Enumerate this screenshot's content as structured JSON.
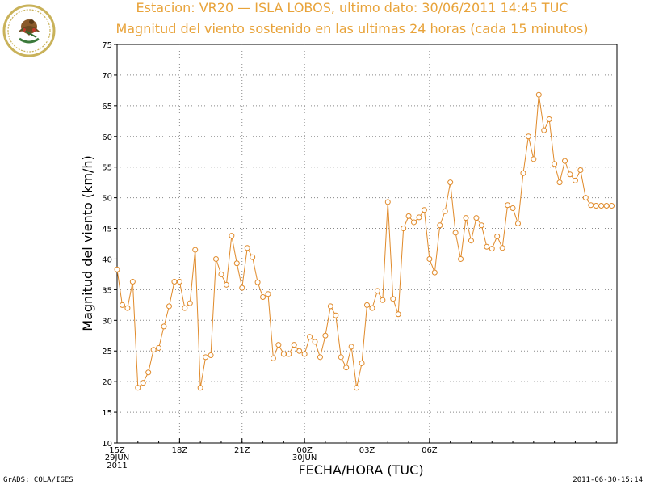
{
  "header": {
    "title": "Estacion: VR20 — ISLA LOBOS, ultimo dato: 30/06/2011 14:45 TUC",
    "subtitle": "Magnitud del viento sostenido en las ultimas 24 horas (cada 15 minutos)"
  },
  "footer": {
    "left": "GrADS: COLA/IGES",
    "right": "2011-06-30-15:14"
  },
  "logo": {
    "name": "seal-logo",
    "lettering": "Secretaria de Marina · Armada de Mexico"
  },
  "colors": {
    "series": "#e08a2a",
    "title": "#e8a33a",
    "grid": "#888888"
  },
  "chart_data": {
    "type": "line",
    "title": "Magnitud del viento sostenido en las ultimas 24 horas (cada 15 minutos)",
    "xlabel": "FECHA/HORA (TUC)",
    "ylabel": "Magnitud del viento (km/h)",
    "ylim": [
      10,
      75
    ],
    "yticks": [
      10,
      15,
      20,
      25,
      30,
      35,
      40,
      45,
      50,
      55,
      60,
      65,
      70,
      75
    ],
    "xlim": [
      "2011-06-29 15:00",
      "2011-06-30 15:00"
    ],
    "xticks": [
      {
        "t": "2011-06-29 15:00",
        "label": "15Z",
        "label2": "29JUN",
        "label3": "2011"
      },
      {
        "t": "2011-06-29 18:00",
        "label": "18Z"
      },
      {
        "t": "2011-06-29 21:00",
        "label": "21Z"
      },
      {
        "t": "2011-06-30 00:00",
        "label": "00Z",
        "label2": "30JUN"
      },
      {
        "t": "2011-06-30 03:00",
        "label": "03Z"
      },
      {
        "t": "2011-06-30 06:00",
        "label": "06Z"
      }
    ],
    "grid": true,
    "start": "2011-06-29 15:00",
    "interval": "15 minutes",
    "values": [
      38.3,
      32.5,
      32.0,
      36.3,
      19.0,
      19.8,
      21.5,
      25.2,
      25.5,
      29.0,
      32.3,
      36.3,
      36.3,
      32.0,
      32.8,
      41.5,
      19.0,
      24.0,
      24.3,
      40.0,
      37.5,
      35.8,
      43.8,
      39.3,
      35.3,
      41.8,
      40.3,
      36.2,
      33.8,
      34.3,
      23.8,
      26.0,
      24.5,
      24.5,
      26.0,
      25.0,
      24.5,
      27.3,
      26.5,
      24.0,
      27.5,
      32.3,
      30.8,
      24.0,
      22.3,
      25.7,
      19.0,
      23.0,
      32.5,
      32.0,
      34.8,
      33.3,
      49.3,
      33.5,
      31.0,
      45.0,
      47.0,
      46.0,
      46.8,
      48.0,
      40.0,
      37.8,
      45.5,
      47.8,
      52.5,
      44.3,
      40.0,
      46.7,
      43.0,
      46.7,
      45.5,
      42.0,
      41.7,
      43.7,
      41.8,
      48.8,
      48.3,
      45.8,
      54.0,
      60.0,
      56.3,
      66.8,
      61.0,
      62.8,
      55.5,
      52.5,
      56.0,
      53.8,
      52.8,
      54.5,
      50.0,
      48.8,
      48.7,
      48.7,
      48.7,
      48.7
    ]
  }
}
